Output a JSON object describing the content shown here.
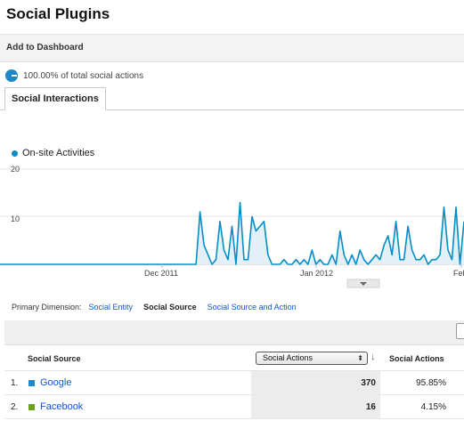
{
  "page": {
    "title": "Social Plugins"
  },
  "toolbar": {
    "add_to_dashboard": "Add to Dashboard"
  },
  "summary": {
    "text": "100.00% of total social actions"
  },
  "tabs": [
    {
      "label": "Social Interactions"
    }
  ],
  "chart_data": {
    "type": "area",
    "series": [
      {
        "name": "On-site Activities",
        "values": [
          0,
          0,
          0,
          0,
          0,
          0,
          0,
          0,
          0,
          0,
          0,
          0,
          0,
          0,
          0,
          0,
          0,
          0,
          0,
          0,
          0,
          0,
          0,
          0,
          0,
          0,
          0,
          0,
          0,
          0,
          0,
          0,
          0,
          0,
          0,
          0,
          0,
          0,
          0,
          0,
          0,
          0,
          0,
          0,
          0,
          0,
          0,
          0,
          0,
          0,
          11,
          4,
          2,
          0,
          1,
          9,
          3,
          1,
          8,
          0,
          13,
          1,
          1,
          10,
          7,
          8,
          9,
          2,
          0,
          0,
          0,
          1,
          0,
          0,
          1,
          0,
          1,
          0,
          3,
          0,
          1,
          0,
          0,
          2,
          0,
          7,
          2,
          0,
          2,
          0,
          3,
          1,
          0,
          1,
          2,
          1,
          4,
          6,
          2,
          9,
          1,
          1,
          8,
          3,
          1,
          1,
          2,
          0,
          1,
          1,
          2,
          12,
          3,
          1,
          12,
          0,
          9
        ]
      }
    ],
    "ylim": [
      0,
      20
    ],
    "yticks": [
      "20",
      "10"
    ],
    "xticks": [
      "Dec 2011",
      "Jan 2012",
      "Feb"
    ],
    "color": "#058dc7"
  },
  "dimension": {
    "label": "Primary Dimension:",
    "options": [
      "Social Entity",
      "Social Source",
      "Social Source and Action"
    ],
    "active_index": 1
  },
  "table": {
    "col_source": "Social Source",
    "metric_select": "Social Actions",
    "col_actions": "Social Actions",
    "rows": [
      {
        "index": "1.",
        "name": "Google",
        "value": "370",
        "percent": "95.85%",
        "color": "#1e88c7"
      },
      {
        "index": "2.",
        "name": "Facebook",
        "value": "16",
        "percent": "4.15%",
        "color": "#6aa121"
      }
    ]
  }
}
